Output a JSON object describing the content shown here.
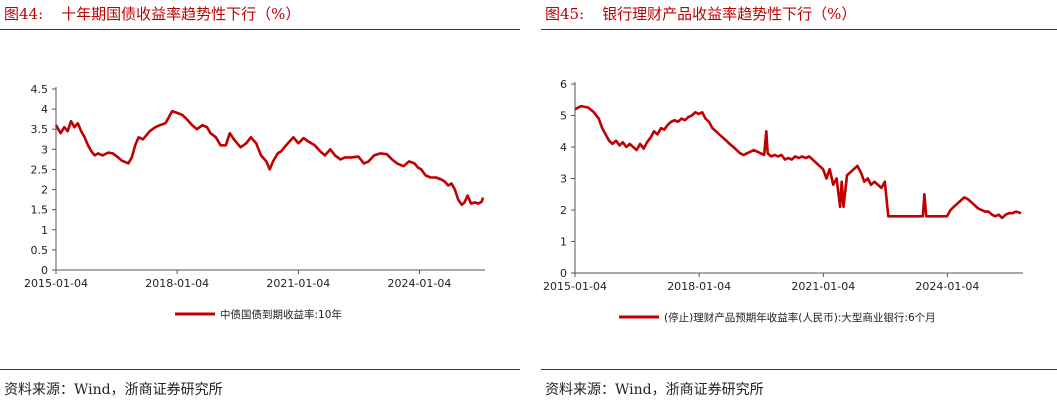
{
  "panels": [
    {
      "figure_no": "图44:",
      "title": "十年期国债收益率趋势性下行（%）",
      "source": "资料来源：Wind，浙商证券研究所"
    },
    {
      "figure_no": "图45:",
      "title": "银行理财产品收益率趋势性下行（%）",
      "source": "资料来源：Wind，浙商证券研究所"
    }
  ],
  "theme": {
    "accent": "#c00000",
    "line_color": "#c00000",
    "axis_color": "#555555"
  },
  "chart_data": [
    {
      "type": "line",
      "title": "十年期国债收益率趋势性下行（%）",
      "xlabel": "",
      "ylabel": "",
      "x_ticks": [
        "2015-01-04",
        "2018-01-04",
        "2021-01-04",
        "2024-01-04"
      ],
      "y_ticks": [
        "0",
        "0.5",
        "1",
        "1.5",
        "2",
        "2.5",
        "3",
        "3.5",
        "4",
        "4.5"
      ],
      "ylim": [
        0,
        4.5
      ],
      "xlim": [
        "2015-01-04",
        "2025-08-01"
      ],
      "grid": false,
      "legend_position": "bottom",
      "series": [
        {
          "name": "中债国债到期收益率:10年",
          "points": [
            [
              "2015-01-04",
              3.6
            ],
            [
              "2015-02-15",
              3.4
            ],
            [
              "2015-03-20",
              3.55
            ],
            [
              "2015-04-20",
              3.45
            ],
            [
              "2015-05-20",
              3.7
            ],
            [
              "2015-06-20",
              3.55
            ],
            [
              "2015-07-20",
              3.65
            ],
            [
              "2015-08-20",
              3.45
            ],
            [
              "2015-09-20",
              3.3
            ],
            [
              "2015-10-20",
              3.1
            ],
            [
              "2015-11-20",
              2.95
            ],
            [
              "2015-12-20",
              2.85
            ],
            [
              "2016-01-20",
              2.9
            ],
            [
              "2016-03-01",
              2.85
            ],
            [
              "2016-04-20",
              2.92
            ],
            [
              "2016-06-01",
              2.9
            ],
            [
              "2016-07-20",
              2.8
            ],
            [
              "2016-08-20",
              2.72
            ],
            [
              "2016-10-20",
              2.65
            ],
            [
              "2016-11-20",
              2.8
            ],
            [
              "2016-12-20",
              3.1
            ],
            [
              "2017-01-20",
              3.3
            ],
            [
              "2017-03-01",
              3.25
            ],
            [
              "2017-05-01",
              3.45
            ],
            [
              "2017-06-20",
              3.55
            ],
            [
              "2017-08-01",
              3.6
            ],
            [
              "2017-09-20",
              3.65
            ],
            [
              "2017-10-20",
              3.8
            ],
            [
              "2017-11-20",
              3.95
            ],
            [
              "2018-01-10",
              3.9
            ],
            [
              "2018-02-20",
              3.85
            ],
            [
              "2018-04-01",
              3.75
            ],
            [
              "2018-05-20",
              3.6
            ],
            [
              "2018-07-01",
              3.5
            ],
            [
              "2018-08-20",
              3.6
            ],
            [
              "2018-10-01",
              3.55
            ],
            [
              "2018-11-01",
              3.4
            ],
            [
              "2018-12-20",
              3.3
            ],
            [
              "2019-02-01",
              3.1
            ],
            [
              "2019-03-20",
              3.1
            ],
            [
              "2019-04-25",
              3.4
            ],
            [
              "2019-06-01",
              3.25
            ],
            [
              "2019-08-01",
              3.05
            ],
            [
              "2019-09-20",
              3.15
            ],
            [
              "2019-11-01",
              3.3
            ],
            [
              "2019-12-20",
              3.15
            ],
            [
              "2020-02-01",
              2.85
            ],
            [
              "2020-03-20",
              2.7
            ],
            [
              "2020-04-20",
              2.5
            ],
            [
              "2020-05-20",
              2.7
            ],
            [
              "2020-07-01",
              2.9
            ],
            [
              "2020-08-01",
              2.95
            ],
            [
              "2020-09-15",
              3.1
            ],
            [
              "2020-11-20",
              3.3
            ],
            [
              "2021-01-04",
              3.15
            ],
            [
              "2021-02-20",
              3.28
            ],
            [
              "2021-04-01",
              3.2
            ],
            [
              "2021-06-01",
              3.1
            ],
            [
              "2021-07-20",
              2.95
            ],
            [
              "2021-09-01",
              2.85
            ],
            [
              "2021-10-20",
              3.0
            ],
            [
              "2021-12-01",
              2.85
            ],
            [
              "2022-01-20",
              2.75
            ],
            [
              "2022-03-01",
              2.8
            ],
            [
              "2022-05-01",
              2.8
            ],
            [
              "2022-07-01",
              2.82
            ],
            [
              "2022-08-20",
              2.65
            ],
            [
              "2022-10-01",
              2.7
            ],
            [
              "2022-11-20",
              2.85
            ],
            [
              "2023-01-15",
              2.9
            ],
            [
              "2023-03-15",
              2.88
            ],
            [
              "2023-05-01",
              2.75
            ],
            [
              "2023-06-15",
              2.65
            ],
            [
              "2023-08-15",
              2.58
            ],
            [
              "2023-10-01",
              2.7
            ],
            [
              "2023-11-20",
              2.65
            ],
            [
              "2023-12-20",
              2.55
            ],
            [
              "2024-01-20",
              2.5
            ],
            [
              "2024-03-01",
              2.35
            ],
            [
              "2024-04-15",
              2.3
            ],
            [
              "2024-06-01",
              2.3
            ],
            [
              "2024-07-20",
              2.25
            ],
            [
              "2024-08-20",
              2.2
            ],
            [
              "2024-09-20",
              2.1
            ],
            [
              "2024-10-20",
              2.15
            ],
            [
              "2024-11-20",
              2.0
            ],
            [
              "2024-12-20",
              1.75
            ],
            [
              "2025-01-20",
              1.62
            ],
            [
              "2025-02-15",
              1.68
            ],
            [
              "2025-03-15",
              1.85
            ],
            [
              "2025-04-15",
              1.65
            ],
            [
              "2025-05-20",
              1.68
            ],
            [
              "2025-06-20",
              1.65
            ],
            [
              "2025-07-20",
              1.7
            ],
            [
              "2025-08-01",
              1.8
            ]
          ]
        }
      ]
    },
    {
      "type": "line",
      "title": "银行理财产品收益率趋势性下行（%）",
      "xlabel": "",
      "ylabel": "",
      "x_ticks": [
        "2015-01-04",
        "2018-01-04",
        "2021-01-04",
        "2024-01-04"
      ],
      "y_ticks": [
        "0",
        "1",
        "2",
        "3",
        "4",
        "5",
        "6"
      ],
      "ylim": [
        0,
        6
      ],
      "xlim": [
        "2015-01-04",
        "2025-10-15"
      ],
      "grid": false,
      "legend_position": "bottom",
      "series": [
        {
          "name": "(停止)理财产品预期年收益率(人民币):大型商业银行:6个月",
          "points": [
            [
              "2015-01-04",
              5.2
            ],
            [
              "2015-03-01",
              5.3
            ],
            [
              "2015-05-01",
              5.25
            ],
            [
              "2015-06-20",
              5.1
            ],
            [
              "2015-08-01",
              4.9
            ],
            [
              "2015-09-01",
              4.6
            ],
            [
              "2015-10-01",
              4.4
            ],
            [
              "2015-11-01",
              4.2
            ],
            [
              "2015-12-01",
              4.1
            ],
            [
              "2016-01-01",
              4.2
            ],
            [
              "2016-02-01",
              4.05
            ],
            [
              "2016-03-01",
              4.15
            ],
            [
              "2016-04-01",
              4.0
            ],
            [
              "2016-05-01",
              4.1
            ],
            [
              "2016-06-01",
              4.0
            ],
            [
              "2016-07-01",
              3.9
            ],
            [
              "2016-08-01",
              4.1
            ],
            [
              "2016-09-01",
              3.95
            ],
            [
              "2016-10-01",
              4.15
            ],
            [
              "2016-11-01",
              4.3
            ],
            [
              "2016-12-01",
              4.5
            ],
            [
              "2017-01-01",
              4.4
            ],
            [
              "2017-02-01",
              4.6
            ],
            [
              "2017-03-01",
              4.55
            ],
            [
              "2017-04-01",
              4.7
            ],
            [
              "2017-05-01",
              4.8
            ],
            [
              "2017-06-01",
              4.85
            ],
            [
              "2017-07-01",
              4.8
            ],
            [
              "2017-08-01",
              4.9
            ],
            [
              "2017-09-01",
              4.85
            ],
            [
              "2017-10-01",
              4.95
            ],
            [
              "2017-11-01",
              5.0
            ],
            [
              "2017-12-01",
              5.1
            ],
            [
              "2018-01-01",
              5.05
            ],
            [
              "2018-02-01",
              5.1
            ],
            [
              "2018-03-01",
              4.9
            ],
            [
              "2018-04-01",
              4.8
            ],
            [
              "2018-05-01",
              4.6
            ],
            [
              "2018-06-01",
              4.5
            ],
            [
              "2018-07-01",
              4.4
            ],
            [
              "2018-08-01",
              4.3
            ],
            [
              "2018-09-01",
              4.2
            ],
            [
              "2018-10-01",
              4.1
            ],
            [
              "2018-11-01",
              4.0
            ],
            [
              "2018-12-01",
              3.9
            ],
            [
              "2019-01-01",
              3.8
            ],
            [
              "2019-02-01",
              3.75
            ],
            [
              "2019-03-01",
              3.8
            ],
            [
              "2019-04-01",
              3.85
            ],
            [
              "2019-05-01",
              3.9
            ],
            [
              "2019-06-01",
              3.85
            ],
            [
              "2019-07-01",
              3.8
            ],
            [
              "2019-08-01",
              3.75
            ],
            [
              "2019-08-20",
              4.5
            ],
            [
              "2019-09-01",
              3.8
            ],
            [
              "2019-10-01",
              3.7
            ],
            [
              "2019-11-01",
              3.75
            ],
            [
              "2019-12-01",
              3.7
            ],
            [
              "2020-01-01",
              3.75
            ],
            [
              "2020-02-01",
              3.6
            ],
            [
              "2020-03-01",
              3.65
            ],
            [
              "2020-04-01",
              3.6
            ],
            [
              "2020-05-01",
              3.7
            ],
            [
              "2020-06-01",
              3.65
            ],
            [
              "2020-07-01",
              3.7
            ],
            [
              "2020-08-01",
              3.65
            ],
            [
              "2020-09-01",
              3.7
            ],
            [
              "2020-10-01",
              3.6
            ],
            [
              "2020-11-01",
              3.5
            ],
            [
              "2020-12-01",
              3.4
            ],
            [
              "2021-01-01",
              3.3
            ],
            [
              "2021-02-01",
              3.0
            ],
            [
              "2021-03-01",
              3.3
            ],
            [
              "2021-04-01",
              2.8
            ],
            [
              "2021-05-01",
              3.0
            ],
            [
              "2021-06-01",
              2.1
            ],
            [
              "2021-06-15",
              2.9
            ],
            [
              "2021-07-01",
              2.1
            ],
            [
              "2021-08-01",
              3.1
            ],
            [
              "2021-09-01",
              3.2
            ],
            [
              "2021-10-01",
              3.3
            ],
            [
              "2021-11-01",
              3.4
            ],
            [
              "2021-12-01",
              3.2
            ],
            [
              "2022-01-01",
              2.9
            ],
            [
              "2022-02-01",
              3.0
            ],
            [
              "2022-03-01",
              2.8
            ],
            [
              "2022-04-01",
              2.9
            ],
            [
              "2022-05-01",
              2.8
            ],
            [
              "2022-06-01",
              2.7
            ],
            [
              "2022-07-01",
              2.9
            ],
            [
              "2022-08-01",
              1.8
            ],
            [
              "2022-09-01",
              1.8
            ],
            [
              "2022-10-01",
              1.8
            ],
            [
              "2022-11-01",
              1.8
            ],
            [
              "2022-12-01",
              1.8
            ],
            [
              "2023-01-01",
              1.8
            ],
            [
              "2023-02-01",
              1.8
            ],
            [
              "2023-03-01",
              1.8
            ],
            [
              "2023-04-01",
              1.8
            ],
            [
              "2023-05-01",
              1.8
            ],
            [
              "2023-06-01",
              1.8
            ],
            [
              "2023-06-15",
              2.5
            ],
            [
              "2023-07-01",
              1.8
            ],
            [
              "2023-08-01",
              1.8
            ],
            [
              "2023-09-01",
              1.8
            ],
            [
              "2023-10-01",
              1.8
            ],
            [
              "2023-11-01",
              1.8
            ],
            [
              "2023-12-01",
              1.8
            ],
            [
              "2024-01-01",
              1.8
            ],
            [
              "2024-02-01",
              2.0
            ],
            [
              "2024-03-01",
              2.1
            ],
            [
              "2024-04-01",
              2.2
            ],
            [
              "2024-05-01",
              2.3
            ],
            [
              "2024-06-01",
              2.4
            ],
            [
              "2024-07-01",
              2.35
            ],
            [
              "2024-08-01",
              2.25
            ],
            [
              "2024-09-01",
              2.15
            ],
            [
              "2024-10-01",
              2.05
            ],
            [
              "2024-11-01",
              2.0
            ],
            [
              "2024-12-01",
              1.95
            ],
            [
              "2025-01-01",
              1.95
            ],
            [
              "2025-02-01",
              1.85
            ],
            [
              "2025-03-01",
              1.8
            ],
            [
              "2025-04-01",
              1.85
            ],
            [
              "2025-05-01",
              1.75
            ],
            [
              "2025-06-01",
              1.85
            ],
            [
              "2025-07-01",
              1.9
            ],
            [
              "2025-08-01",
              1.9
            ],
            [
              "2025-09-01",
              1.95
            ],
            [
              "2025-10-15",
              1.9
            ]
          ]
        }
      ]
    }
  ]
}
